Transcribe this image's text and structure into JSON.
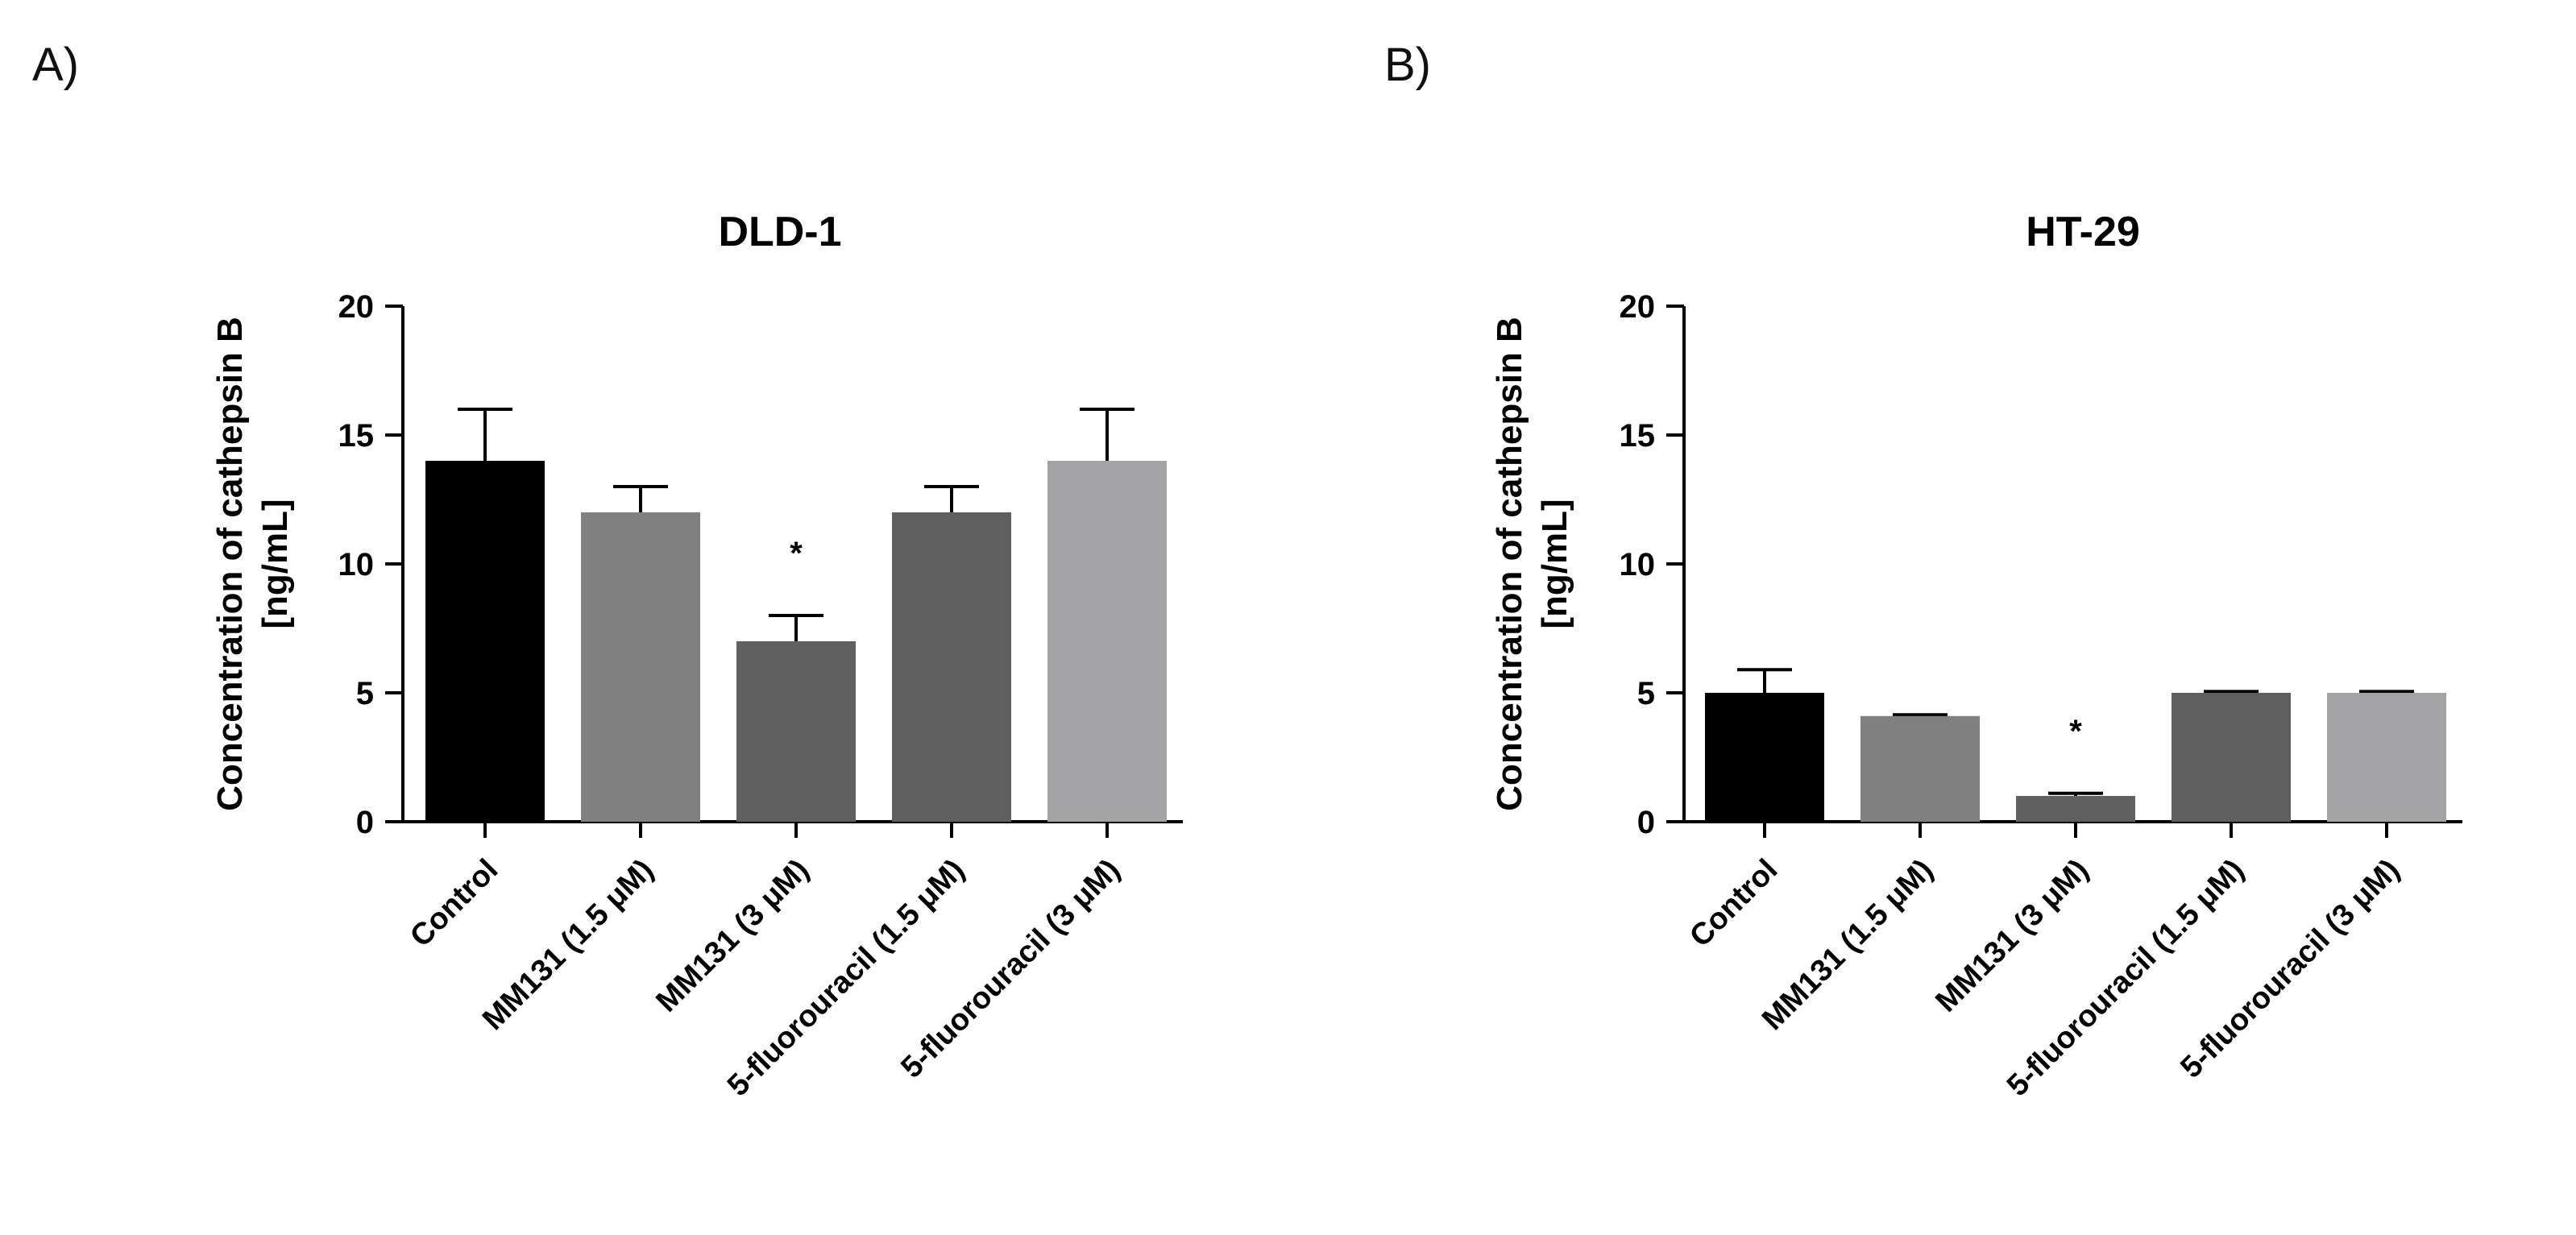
{
  "chart_data": [
    {
      "panel": "A)",
      "type": "bar",
      "title": "DLD-1",
      "ylabel": [
        "Concentration of cathepsin B",
        "[ng/mL]"
      ],
      "xlabel": "",
      "ylim": [
        0,
        20
      ],
      "yticks": [
        0,
        5,
        10,
        15,
        20
      ],
      "categories": [
        "Control",
        "MM131 (1.5 μM)",
        "MM131 (3 μM)",
        "5-fluorouracil (1.5 μM)",
        "5-fluorouracil (3 μM)"
      ],
      "values": [
        14,
        12,
        7,
        12,
        14
      ],
      "errors": [
        2,
        1,
        1,
        1,
        2
      ],
      "colors": [
        "#000000",
        "#808080",
        "#606060",
        "#5f5f5f",
        "#a3a3a6"
      ],
      "annotations": [
        "",
        "",
        "*",
        "",
        ""
      ],
      "grid": false
    },
    {
      "panel": "B)",
      "type": "bar",
      "title": "HT-29",
      "ylabel": [
        "Concentration of cathepsin B",
        "[ng/mL]"
      ],
      "xlabel": "",
      "ylim": [
        0,
        20
      ],
      "yticks": [
        0,
        5,
        10,
        15,
        20
      ],
      "categories": [
        "Control",
        "MM131 (1.5 μM)",
        "MM131 (3 μM)",
        "5-fluorouracil (1.5 μM)",
        "5-fluorouracil (3 μM)"
      ],
      "values": [
        5,
        4.1,
        1,
        5,
        5
      ],
      "errors": [
        0.9,
        0.05,
        0.1,
        0.05,
        0.05
      ],
      "colors": [
        "#000000",
        "#808080",
        "#606060",
        "#5f5f5f",
        "#a3a3a6"
      ],
      "annotations": [
        "",
        "",
        "*",
        "",
        ""
      ],
      "grid": false
    }
  ]
}
